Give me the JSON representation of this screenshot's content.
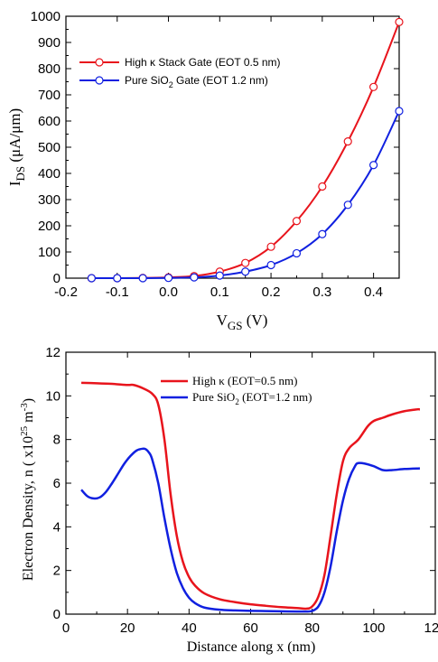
{
  "chart_data": [
    {
      "type": "line",
      "xlabel": "V",
      "xlabel_sub": "GS",
      "xlabel_unit": " (V)",
      "ylabel": "I",
      "ylabel_sub": "DS",
      "ylabel_unit": " (μA/μm)",
      "xlim": [
        -0.2,
        0.45
      ],
      "ylim": [
        0,
        1000
      ],
      "xticks": [
        "-0.2",
        "-0.1",
        "0.0",
        "0.1",
        "0.2",
        "0.3",
        "0.4"
      ],
      "yticks": [
        "0",
        "100",
        "200",
        "300",
        "400",
        "500",
        "600",
        "700",
        "800",
        "900",
        "1000"
      ],
      "legend_position": "top-left",
      "series": [
        {
          "name": "High κ  Stack Gate (EOT 0.5 nm)",
          "color": "#e8141c",
          "x": [
            -0.15,
            -0.1,
            -0.05,
            0.0,
            0.05,
            0.1,
            0.15,
            0.2,
            0.25,
            0.3,
            0.35,
            0.4,
            0.45
          ],
          "y": [
            0,
            0,
            1,
            3,
            8,
            25,
            58,
            120,
            218,
            350,
            522,
            730,
            978
          ]
        },
        {
          "name_main": "Pure SiO",
          "name_sub": "2",
          "name_rest": " Gate (EOT 1.2 nm)",
          "color": "#1020e0",
          "x": [
            -0.15,
            -0.1,
            -0.05,
            0.0,
            0.05,
            0.1,
            0.15,
            0.2,
            0.25,
            0.3,
            0.35,
            0.4,
            0.45
          ],
          "y": [
            0,
            0,
            0,
            1,
            3,
            10,
            25,
            50,
            95,
            168,
            280,
            432,
            638
          ]
        }
      ]
    },
    {
      "type": "line",
      "xlabel": "Distance along x (nm)",
      "ylabel": "Electron Density, n ( x10",
      "ylabel_exp": "25",
      "ylabel_unit": " m",
      "ylabel_unit_exp": "-3",
      "ylabel_close": ")",
      "xlim": [
        0,
        120
      ],
      "ylim": [
        0,
        12
      ],
      "xticks": [
        "0",
        "20",
        "40",
        "60",
        "80",
        "100",
        "120"
      ],
      "yticks": [
        "0",
        "2",
        "4",
        "6",
        "8",
        "10",
        "12"
      ],
      "legend_position": "top-right",
      "series": [
        {
          "name_main": "High κ (EOT=0.5 nm)",
          "color": "#e8141c",
          "x": [
            5,
            10,
            15,
            20,
            22,
            25,
            28,
            30,
            32,
            34,
            36,
            38,
            40,
            42,
            45,
            50,
            55,
            60,
            65,
            70,
            75,
            78,
            80,
            82,
            84,
            86,
            88,
            90,
            92,
            95,
            98,
            100,
            103,
            106,
            110,
            114,
            115
          ],
          "y": [
            10.6,
            10.58,
            10.55,
            10.5,
            10.5,
            10.35,
            10.1,
            9.6,
            8.0,
            5.5,
            3.6,
            2.4,
            1.7,
            1.3,
            0.95,
            0.68,
            0.55,
            0.45,
            0.38,
            0.32,
            0.28,
            0.25,
            0.35,
            0.8,
            1.8,
            3.6,
            5.5,
            7.0,
            7.6,
            8.0,
            8.6,
            8.85,
            9.0,
            9.15,
            9.3,
            9.38,
            9.38
          ]
        },
        {
          "name_main": "Pure SiO",
          "name_sub": "2",
          "name_rest": " (EOT=1.2 nm)",
          "color": "#1020e0",
          "x": [
            5,
            7,
            9,
            11,
            13,
            15,
            17,
            19,
            21,
            23,
            25,
            26,
            27,
            28,
            30,
            32,
            34,
            36,
            38,
            40,
            42,
            45,
            50,
            55,
            60,
            65,
            70,
            75,
            78,
            80,
            82,
            84,
            86,
            88,
            90,
            92,
            94,
            95,
            97,
            100,
            103,
            106,
            110,
            115
          ],
          "y": [
            5.7,
            5.4,
            5.3,
            5.35,
            5.6,
            6.0,
            6.45,
            6.9,
            7.25,
            7.5,
            7.58,
            7.55,
            7.4,
            7.1,
            6.0,
            4.4,
            3.0,
            1.9,
            1.2,
            0.75,
            0.5,
            0.3,
            0.2,
            0.17,
            0.15,
            0.14,
            0.13,
            0.12,
            0.12,
            0.15,
            0.35,
            1.0,
            2.2,
            3.8,
            5.2,
            6.2,
            6.8,
            6.92,
            6.9,
            6.78,
            6.6,
            6.6,
            6.65,
            6.68
          ]
        }
      ]
    }
  ]
}
